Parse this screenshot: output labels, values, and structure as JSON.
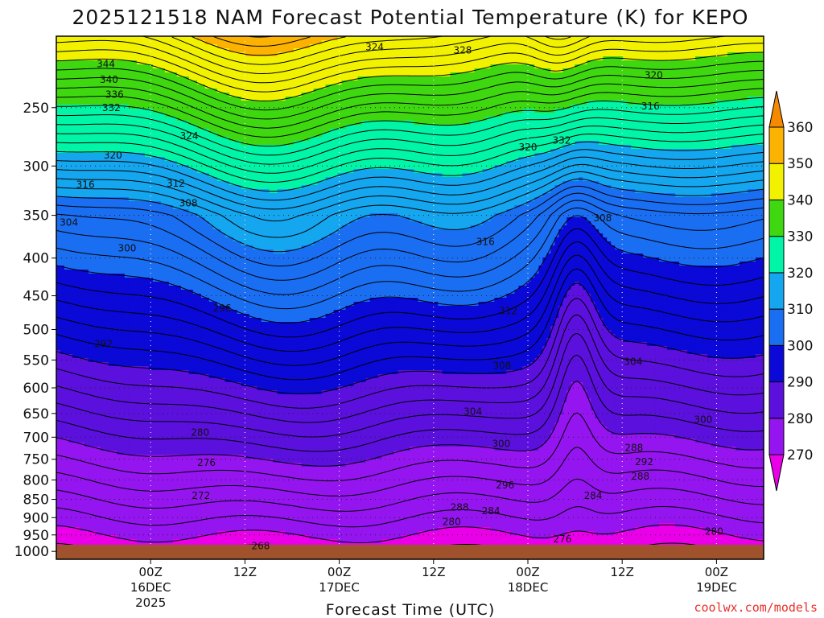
{
  "chart_data": {
    "type": "heatmap",
    "title": "2025121518 NAM Forecast Potential Temperature (K) for KEPO",
    "xlabel": "Forecast Time (UTC)",
    "ylabel": "",
    "credit": "coolwx.com/models",
    "yaxis_pressure_hpa": [
      250,
      300,
      350,
      400,
      450,
      500,
      550,
      600,
      650,
      700,
      750,
      800,
      850,
      900,
      950,
      1000
    ],
    "yaxis_labels": [
      "250",
      "300",
      "350",
      "400",
      "450",
      "500",
      "550",
      "600",
      "650",
      "700",
      "750",
      "800",
      "850",
      "900",
      "950",
      "1000"
    ],
    "ylim_hpa": [
      200,
      1025
    ],
    "xlim_hours": [
      -6,
      84
    ],
    "xaxis_ticks": [
      {
        "hour": 6,
        "label": "00Z",
        "date": "16DEC",
        "year": "2025"
      },
      {
        "hour": 18,
        "label": "12Z",
        "date": "",
        "year": ""
      },
      {
        "hour": 30,
        "label": "00Z",
        "date": "17DEC",
        "year": ""
      },
      {
        "hour": 42,
        "label": "12Z",
        "date": "",
        "year": ""
      },
      {
        "hour": 54,
        "label": "00Z",
        "date": "18DEC",
        "year": ""
      },
      {
        "hour": 66,
        "label": "12Z",
        "date": "",
        "year": ""
      },
      {
        "hour": 78,
        "label": "00Z",
        "date": "19DEC",
        "year": ""
      }
    ],
    "colorbar": {
      "levels": [
        270,
        280,
        290,
        300,
        310,
        320,
        330,
        340,
        350,
        360
      ],
      "labels": [
        "270",
        "280",
        "290",
        "300",
        "310",
        "320",
        "330",
        "340",
        "350",
        "360"
      ],
      "colors": [
        "#e900e9",
        "#9515f0",
        "#5b10dd",
        "#0a09d8",
        "#1a6ef2",
        "#14a6ee",
        "#00f5a6",
        "#3fd810",
        "#f2f200",
        "#fbb200",
        "#f58a00"
      ],
      "ground_color": "#a0522d"
    },
    "contour_interval_k": 2,
    "contour_labels": [
      {
        "value": 344,
        "hour": 0.3,
        "p": 218
      },
      {
        "value": 340,
        "hour": 0.7,
        "p": 229
      },
      {
        "value": 336,
        "hour": 1.4,
        "p": 240
      },
      {
        "value": 332,
        "hour": 1.0,
        "p": 250
      },
      {
        "value": 324,
        "hour": 34.5,
        "p": 207
      },
      {
        "value": 328,
        "hour": 45.7,
        "p": 209
      },
      {
        "value": 324,
        "hour": 10.9,
        "p": 273
      },
      {
        "value": 320,
        "hour": 1.2,
        "p": 290
      },
      {
        "value": 316,
        "hour": -2.3,
        "p": 318
      },
      {
        "value": 312,
        "hour": 9.2,
        "p": 317
      },
      {
        "value": 308,
        "hour": 10.8,
        "p": 337
      },
      {
        "value": 304,
        "hour": -4.4,
        "p": 358
      },
      {
        "value": 300,
        "hour": 3.0,
        "p": 388
      },
      {
        "value": 296,
        "hour": 15.1,
        "p": 468
      },
      {
        "value": 292,
        "hour": 0.0,
        "p": 523
      },
      {
        "value": 320,
        "hour": 54.0,
        "p": 283
      },
      {
        "value": 332,
        "hour": 58.3,
        "p": 277
      },
      {
        "value": 320,
        "hour": 70.0,
        "p": 226
      },
      {
        "value": 316,
        "hour": 69.6,
        "p": 249
      },
      {
        "value": 308,
        "hour": 63.5,
        "p": 353
      },
      {
        "value": 316,
        "hour": 48.6,
        "p": 380
      },
      {
        "value": 312,
        "hour": 51.5,
        "p": 472
      },
      {
        "value": 308,
        "hour": 50.7,
        "p": 560
      },
      {
        "value": 304,
        "hour": 67.4,
        "p": 553
      },
      {
        "value": 304,
        "hour": 47.0,
        "p": 646
      },
      {
        "value": 300,
        "hour": 50.6,
        "p": 715
      },
      {
        "value": 300,
        "hour": 76.3,
        "p": 663
      },
      {
        "value": 296,
        "hour": 51.1,
        "p": 813
      },
      {
        "value": 288,
        "hour": 67.5,
        "p": 724
      },
      {
        "value": 292,
        "hour": 68.8,
        "p": 756
      },
      {
        "value": 288,
        "hour": 68.3,
        "p": 791
      },
      {
        "value": 288,
        "hour": 45.3,
        "p": 872
      },
      {
        "value": 284,
        "hour": 49.3,
        "p": 882
      },
      {
        "value": 284,
        "hour": 62.3,
        "p": 840
      },
      {
        "value": 280,
        "hour": 44.3,
        "p": 912
      },
      {
        "value": 280,
        "hour": 77.7,
        "p": 940
      },
      {
        "value": 276,
        "hour": 58.4,
        "p": 963
      },
      {
        "value": 280,
        "hour": 12.3,
        "p": 690
      },
      {
        "value": 276,
        "hour": 13.1,
        "p": 758
      },
      {
        "value": 272,
        "hour": 12.4,
        "p": 840
      },
      {
        "value": 268,
        "hour": 20.0,
        "p": 983
      }
    ]
  }
}
